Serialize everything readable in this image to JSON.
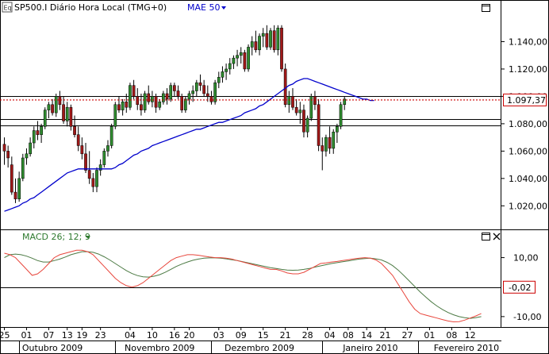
{
  "header": {
    "badge": "Eq",
    "symbol_text": "SP500.I Diário Hora Local (TMG+0)",
    "indicator": "MAE 50"
  },
  "macd_header": {
    "label": "MACD 26; 12; 9"
  },
  "colors": {
    "bull": "#2e8b2e",
    "bear": "#a01818",
    "ma": "#0000cc",
    "macd": "#e8463c",
    "signal": "#4c7a44",
    "price_line": "#cc0000",
    "value_label": "#cc0000"
  },
  "chart_data": [
    {
      "type": "candlestick",
      "title": "SP500.I Diário Hora Local (TMG+0)",
      "ylim": [
        1008,
        1160
      ],
      "yticks": [
        "1.140,00",
        "1.120,00",
        "1.100,00",
        "1.080,00",
        "1.060,00",
        "1.040,00",
        "1.020,00"
      ],
      "ytick_values": [
        1140,
        1120,
        1100,
        1080,
        1060,
        1040,
        1020
      ],
      "current_value": 1097.37,
      "current_label": "1.097,37",
      "horizontal_lines": [
        1100.5,
        1083.5,
        1078.5
      ],
      "moving_average": {
        "name": "MAE 50",
        "values": [
          1016,
          1017,
          1018,
          1019,
          1020,
          1022,
          1023,
          1025,
          1026,
          1028,
          1030,
          1032,
          1034,
          1036,
          1038,
          1040,
          1042,
          1044,
          1045,
          1046,
          1047,
          1047,
          1047,
          1047,
          1047,
          1047,
          1047,
          1047,
          1047,
          1047,
          1048,
          1050,
          1051,
          1053,
          1055,
          1057,
          1058,
          1060,
          1061,
          1062,
          1064,
          1065,
          1066,
          1067,
          1068,
          1069,
          1070,
          1071,
          1072,
          1073,
          1074,
          1075,
          1076,
          1076,
          1077,
          1078,
          1079,
          1080,
          1081,
          1081,
          1082,
          1083,
          1084,
          1085,
          1086,
          1088,
          1089,
          1090,
          1091,
          1093,
          1094,
          1096,
          1098,
          1100,
          1102,
          1104,
          1106,
          1108,
          1109,
          1111,
          1112,
          1113,
          1113,
          1112,
          1111,
          1110,
          1109,
          1108,
          1107,
          1106,
          1105,
          1104,
          1103,
          1102,
          1101,
          1100,
          1099,
          1098,
          1098,
          1097,
          1097
        ]
      },
      "candles": [
        [
          1065,
          1070,
          1050,
          1060
        ],
        [
          1060,
          1064,
          1048,
          1055
        ],
        [
          1050,
          1056,
          1028,
          1030
        ],
        [
          1030,
          1040,
          1022,
          1025
        ],
        [
          1025,
          1045,
          1023,
          1040
        ],
        [
          1040,
          1058,
          1038,
          1055
        ],
        [
          1055,
          1062,
          1050,
          1058
        ],
        [
          1058,
          1070,
          1056,
          1066
        ],
        [
          1066,
          1078,
          1062,
          1075
        ],
        [
          1075,
          1082,
          1068,
          1072
        ],
        [
          1072,
          1080,
          1066,
          1078
        ],
        [
          1078,
          1092,
          1076,
          1090
        ],
        [
          1090,
          1096,
          1084,
          1094
        ],
        [
          1094,
          1098,
          1086,
          1088
        ],
        [
          1088,
          1102,
          1085,
          1100
        ],
        [
          1100,
          1104,
          1090,
          1094
        ],
        [
          1094,
          1100,
          1080,
          1082
        ],
        [
          1082,
          1096,
          1078,
          1092
        ],
        [
          1092,
          1094,
          1075,
          1078
        ],
        [
          1078,
          1086,
          1070,
          1072
        ],
        [
          1072,
          1078,
          1060,
          1064
        ],
        [
          1064,
          1070,
          1054,
          1058
        ],
        [
          1058,
          1066,
          1044,
          1046
        ],
        [
          1046,
          1060,
          1036,
          1040
        ],
        [
          1040,
          1044,
          1030,
          1034
        ],
        [
          1034,
          1048,
          1030,
          1046
        ],
        [
          1046,
          1054,
          1042,
          1050
        ],
        [
          1050,
          1062,
          1048,
          1060
        ],
        [
          1060,
          1068,
          1056,
          1064
        ],
        [
          1064,
          1080,
          1062,
          1078
        ],
        [
          1078,
          1096,
          1076,
          1094
        ],
        [
          1094,
          1100,
          1088,
          1090
        ],
        [
          1090,
          1098,
          1086,
          1096
        ],
        [
          1096,
          1102,
          1088,
          1092
        ],
        [
          1092,
          1110,
          1090,
          1108
        ],
        [
          1108,
          1112,
          1098,
          1100
        ],
        [
          1100,
          1106,
          1090,
          1094
        ],
        [
          1094,
          1102,
          1086,
          1090
        ],
        [
          1090,
          1104,
          1088,
          1102
        ],
        [
          1102,
          1108,
          1094,
          1096
        ],
        [
          1096,
          1104,
          1092,
          1100
        ],
        [
          1100,
          1102,
          1088,
          1092
        ],
        [
          1092,
          1098,
          1090,
          1096
        ],
        [
          1096,
          1104,
          1094,
          1102
        ],
        [
          1102,
          1106,
          1094,
          1098
        ],
        [
          1098,
          1110,
          1096,
          1108
        ],
        [
          1108,
          1110,
          1100,
          1104
        ],
        [
          1104,
          1108,
          1098,
          1100
        ],
        [
          1100,
          1102,
          1088,
          1090
        ],
        [
          1090,
          1100,
          1088,
          1098
        ],
        [
          1098,
          1104,
          1094,
          1102
        ],
        [
          1102,
          1108,
          1096,
          1104
        ],
        [
          1104,
          1112,
          1100,
          1110
        ],
        [
          1110,
          1116,
          1104,
          1108
        ],
        [
          1108,
          1112,
          1100,
          1102
        ],
        [
          1102,
          1108,
          1096,
          1100
        ],
        [
          1100,
          1104,
          1094,
          1096
        ],
        [
          1096,
          1112,
          1094,
          1110
        ],
        [
          1110,
          1118,
          1106,
          1114
        ],
        [
          1114,
          1122,
          1110,
          1118
        ],
        [
          1118,
          1124,
          1112,
          1120
        ],
        [
          1120,
          1128,
          1116,
          1124
        ],
        [
          1124,
          1130,
          1120,
          1128
        ],
        [
          1128,
          1134,
          1122,
          1130
        ],
        [
          1130,
          1136,
          1124,
          1132
        ],
        [
          1132,
          1134,
          1118,
          1120
        ],
        [
          1120,
          1138,
          1118,
          1136
        ],
        [
          1136,
          1144,
          1130,
          1140
        ],
        [
          1140,
          1148,
          1132,
          1134
        ],
        [
          1134,
          1146,
          1130,
          1144
        ],
        [
          1144,
          1150,
          1136,
          1146
        ],
        [
          1146,
          1152,
          1134,
          1136
        ],
        [
          1136,
          1150,
          1134,
          1148
        ],
        [
          1148,
          1152,
          1132,
          1134
        ],
        [
          1134,
          1152,
          1130,
          1150
        ],
        [
          1150,
          1152,
          1118,
          1120
        ],
        [
          1120,
          1124,
          1092,
          1094
        ],
        [
          1094,
          1104,
          1088,
          1100
        ],
        [
          1100,
          1106,
          1090,
          1092
        ],
        [
          1092,
          1098,
          1086,
          1088
        ],
        [
          1088,
          1096,
          1080,
          1090
        ],
        [
          1090,
          1094,
          1070,
          1074
        ],
        [
          1074,
          1086,
          1070,
          1084
        ],
        [
          1084,
          1102,
          1082,
          1100
        ],
        [
          1100,
          1104,
          1090,
          1094
        ],
        [
          1094,
          1098,
          1060,
          1064
        ],
        [
          1064,
          1070,
          1046,
          1060
        ],
        [
          1060,
          1072,
          1056,
          1070
        ],
        [
          1070,
          1078,
          1058,
          1062
        ],
        [
          1062,
          1076,
          1058,
          1074
        ],
        [
          1074,
          1080,
          1066,
          1078
        ],
        [
          1078,
          1096,
          1076,
          1094
        ],
        [
          1094,
          1100,
          1090,
          1098
        ]
      ]
    },
    {
      "type": "line",
      "title": "MACD 26; 12; 9",
      "ylim": [
        -13,
        15
      ],
      "yticks": [
        "10,00",
        "-10,00"
      ],
      "ytick_values": [
        10,
        -10
      ],
      "zero_line": 0,
      "current_value": -0.02,
      "current_label": "-0,02",
      "series": [
        {
          "name": "MACD",
          "values": [
            11.5,
            11,
            10,
            8,
            6,
            4,
            4.5,
            6,
            8,
            10,
            11,
            11.5,
            12,
            12.5,
            12.5,
            12,
            11,
            9,
            7,
            5,
            3,
            1.5,
            0.5,
            0,
            0.5,
            1.5,
            3,
            4.5,
            6,
            7.5,
            9,
            10,
            10.5,
            11,
            11,
            10.8,
            10.5,
            10.2,
            10,
            10,
            9.8,
            9.5,
            9,
            8.5,
            8,
            7.5,
            7,
            6.5,
            6,
            6,
            5.5,
            4.8,
            4.5,
            4.5,
            5,
            6,
            7,
            8,
            8.2,
            8.5,
            8.7,
            9,
            9.3,
            9.6,
            9.8,
            10,
            9.8,
            9.2,
            8,
            6,
            4,
            1,
            -2,
            -5,
            -7.5,
            -9,
            -9.5,
            -10,
            -10.5,
            -11,
            -11.5,
            -11.8,
            -11.7,
            -11.2,
            -10.5,
            -9.8,
            -9
          ]
        },
        {
          "name": "Signal",
          "values": [
            10,
            11,
            11.2,
            11,
            10.5,
            9.8,
            9,
            8.5,
            8.5,
            9,
            9.5,
            10.2,
            11,
            11.5,
            12,
            12,
            11.8,
            11.2,
            10.3,
            9.2,
            8,
            6.8,
            5.6,
            4.6,
            3.9,
            3.5,
            3.4,
            3.7,
            4.2,
            5,
            6,
            7,
            7.8,
            8.5,
            9.1,
            9.5,
            9.8,
            9.9,
            9.9,
            9.8,
            9.6,
            9.3,
            9,
            8.6,
            8.2,
            7.8,
            7.4,
            7,
            6.6,
            6.3,
            6,
            5.8,
            5.7,
            5.8,
            6,
            6.3,
            6.8,
            7.2,
            7.6,
            8,
            8.3,
            8.6,
            8.9,
            9.2,
            9.5,
            9.7,
            9.8,
            9.6,
            9.2,
            8.4,
            7.3,
            5.8,
            4,
            2.1,
            0.2,
            -1.7,
            -3.4,
            -5,
            -6.4,
            -7.6,
            -8.6,
            -9.4,
            -10,
            -10.4,
            -10.6,
            -10.4,
            -10
          ]
        }
      ]
    }
  ],
  "xaxis": {
    "day_labels": [
      "25",
      "01",
      "07",
      "13",
      "19",
      "23",
      "04",
      "10",
      "16",
      "20",
      "03",
      "09",
      "15",
      "21",
      "28",
      "04",
      "08",
      "14",
      "21",
      "27",
      "01",
      "08",
      "12"
    ],
    "day_positions": [
      0,
      6,
      12,
      17,
      21,
      26,
      34,
      40,
      46,
      50,
      58,
      64,
      70,
      76,
      82,
      88,
      93,
      98,
      103,
      109,
      115,
      121,
      126
    ],
    "months": [
      {
        "label": "Outubro 2009",
        "pos": 13
      },
      {
        "label": "Novembro 2009",
        "pos": 42
      },
      {
        "label": "Dezembro 2009",
        "pos": 69
      },
      {
        "label": "Janeiro 2010",
        "pos": 99
      },
      {
        "label": "Fevereiro 2010",
        "pos": 125
      }
    ],
    "month_boundaries": [
      4,
      30,
      56,
      86,
      112
    ]
  }
}
